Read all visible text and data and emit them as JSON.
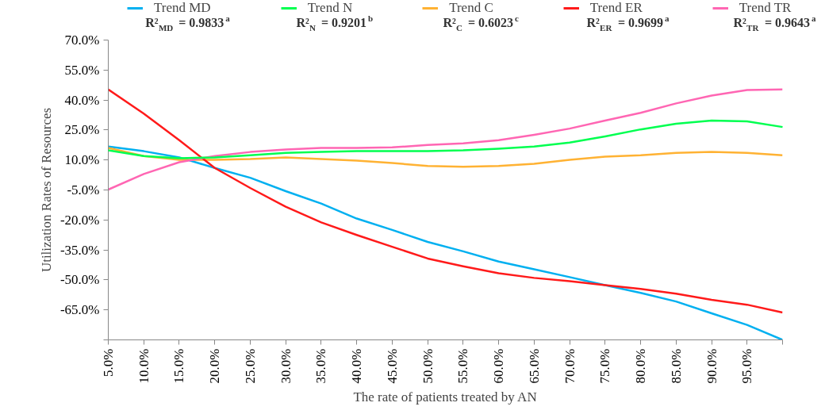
{
  "chart_data": {
    "type": "line",
    "xlabel": "The rate of patients treated by AN",
    "ylabel": "Utilization Rates of Resources",
    "x": [
      5,
      10,
      15,
      20,
      25,
      30,
      35,
      40,
      45,
      50,
      55,
      60,
      65,
      70,
      75,
      80,
      85,
      90,
      95,
      100
    ],
    "series": [
      {
        "name": "Trend MD",
        "color": "#00b0f0",
        "values": [
          16.7,
          14.4,
          11.3,
          6,
          1.1,
          -5.6,
          -11.8,
          -19.3,
          -25,
          -31,
          -35.7,
          -40.8,
          -44.7,
          -48.6,
          -52.6,
          -56.5,
          -60.8,
          -66.7,
          -72.5,
          -80
        ]
      },
      {
        "name": "Trend N",
        "color": "#00ff50",
        "values": [
          14.8,
          12,
          10.9,
          11.3,
          12.4,
          13.6,
          14,
          14.4,
          14.4,
          14.4,
          14.8,
          15.6,
          16.7,
          18.7,
          21.8,
          25.3,
          28.1,
          29.7,
          29.3,
          26.5
        ]
      },
      {
        "name": "Trend C",
        "color": "#ffb233",
        "values": [
          16,
          12,
          10.1,
          10.1,
          10.5,
          11.3,
          10.5,
          9.7,
          8.5,
          7,
          6.6,
          7,
          8.1,
          10.1,
          11.7,
          12.4,
          13.6,
          14,
          13.6,
          12.4
        ]
      },
      {
        "name": "Trend ER",
        "color": "#ff1a1a",
        "values": [
          45.3,
          33.2,
          19.9,
          6,
          -4,
          -13.4,
          -21.2,
          -27.5,
          -33.4,
          -39.3,
          -43.2,
          -46.7,
          -49,
          -50.6,
          -52.6,
          -54.5,
          -56.9,
          -60,
          -62.4,
          -66.3
        ]
      },
      {
        "name": "Trend TR",
        "color": "#ff66b3",
        "values": [
          -4.8,
          3,
          8.9,
          12,
          14,
          15.2,
          16,
          16,
          16.3,
          17.5,
          18.3,
          19.9,
          22.6,
          25.7,
          29.7,
          33.6,
          38.3,
          42.2,
          45,
          45.3
        ]
      }
    ],
    "annotations": [
      "R²$_{MD}$ = 0.9833$^{a}$",
      "R²$_{N}$ = 0.9201$^{b}$",
      "R²$_{C}$ = 0.6023$^{c}$",
      "R²$_{ER}$ = 0.9699$^{a}$",
      "R²$_{TR}$ = 0.9643$^{a}$"
    ],
    "xlim": [
      5,
      100
    ],
    "xticks": [
      {
        "value": 5,
        "label": "5.0%"
      },
      {
        "value": 10,
        "label": "10.0%"
      },
      {
        "value": 15,
        "label": "15.0%"
      },
      {
        "value": 20,
        "label": "20.0%"
      },
      {
        "value": 25,
        "label": "25.0%"
      },
      {
        "value": 30,
        "label": "30.0%"
      },
      {
        "value": 35,
        "label": "35.0%"
      },
      {
        "value": 40,
        "label": "40.0%"
      },
      {
        "value": 45,
        "label": "45.0%"
      },
      {
        "value": 50,
        "label": "50.0%"
      },
      {
        "value": 55,
        "label": "55.0%"
      },
      {
        "value": 60,
        "label": "60.0%"
      },
      {
        "value": 65,
        "label": "65.0%"
      },
      {
        "value": 70,
        "label": "70.0%"
      },
      {
        "value": 75,
        "label": "75.0%"
      },
      {
        "value": 80,
        "label": "80.0%"
      },
      {
        "value": 85,
        "label": "85.0%"
      },
      {
        "value": 90,
        "label": "90.0%"
      },
      {
        "value": 95,
        "label": "95.0%"
      },
      {
        "value": 100,
        "label": null
      }
    ],
    "ylim": [
      -80,
      70
    ],
    "yticks": [
      {
        "value": 70,
        "label": "70.0%"
      },
      {
        "value": 55,
        "label": "55.0%"
      },
      {
        "value": 40,
        "label": "40.0%"
      },
      {
        "value": 25,
        "label": "25.0%"
      },
      {
        "value": 10,
        "label": "10.0%"
      },
      {
        "value": -5,
        "label": "-5.0%"
      },
      {
        "value": -20,
        "label": "-20.0%"
      },
      {
        "value": -35,
        "label": "-35.0%"
      },
      {
        "value": -50,
        "label": "-50.0%"
      },
      {
        "value": -65,
        "label": "-65.0%"
      },
      {
        "value": -80,
        "label": null
      }
    ],
    "legend": "top",
    "grid": false,
    "marker": "none",
    "line_style": "solid"
  }
}
